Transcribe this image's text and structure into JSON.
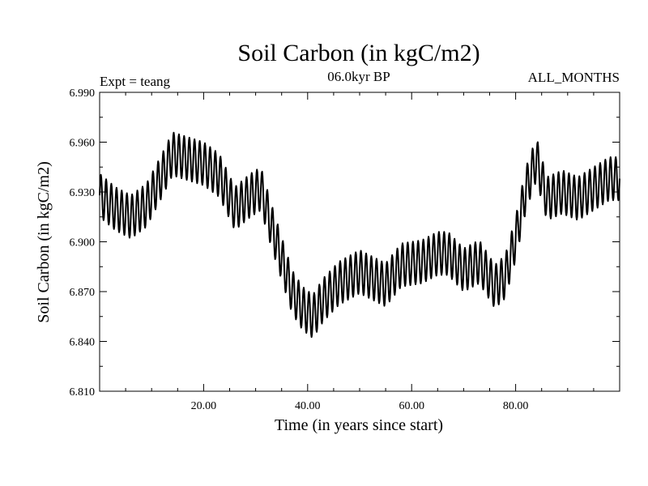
{
  "chart_data": {
    "type": "line",
    "title": "Soil Carbon (in kgC/m2)",
    "subtitle": "06.0kyr BP",
    "annotation_left": "Expt = teang",
    "annotation_right": "ALL_MONTHS",
    "xlabel": "Time (in years since start)",
    "ylabel": "Soil Carbon (in kgC/m2)",
    "xlim": [
      0,
      100
    ],
    "ylim": [
      6.81,
      6.99
    ],
    "xticks": [
      20,
      40,
      60,
      80
    ],
    "xtick_labels": [
      "20.00",
      "40.00",
      "60.00",
      "80.00"
    ],
    "yticks": [
      6.81,
      6.84,
      6.87,
      6.9,
      6.93,
      6.96,
      6.99
    ],
    "ytick_labels": [
      "6.810",
      "6.840",
      "6.870",
      "6.900",
      "6.930",
      "6.960",
      "6.990"
    ],
    "grid": false,
    "series": [
      {
        "name": "Soil Carbon",
        "color": "#000000",
        "seasonal_amplitude": 0.013,
        "points_per_year": 12,
        "annual_mean": {
          "x": [
            0,
            3,
            6,
            9,
            12,
            14,
            17,
            20,
            23,
            26,
            29,
            31,
            33,
            35,
            37,
            39,
            41,
            43,
            46,
            50,
            55,
            58,
            62,
            65,
            67,
            70,
            73,
            76,
            78,
            80,
            82,
            84,
            86,
            89,
            92,
            95,
            98
          ],
          "y": [
            6.928,
            6.92,
            6.915,
            6.922,
            6.94,
            6.953,
            6.95,
            6.947,
            6.94,
            6.92,
            6.928,
            6.932,
            6.91,
            6.89,
            6.87,
            6.86,
            6.855,
            6.865,
            6.875,
            6.882,
            6.874,
            6.886,
            6.888,
            6.893,
            6.893,
            6.883,
            6.888,
            6.873,
            6.879,
            6.902,
            6.932,
            6.95,
            6.926,
            6.93,
            6.926,
            6.932,
            6.938
          ]
        }
      }
    ]
  }
}
